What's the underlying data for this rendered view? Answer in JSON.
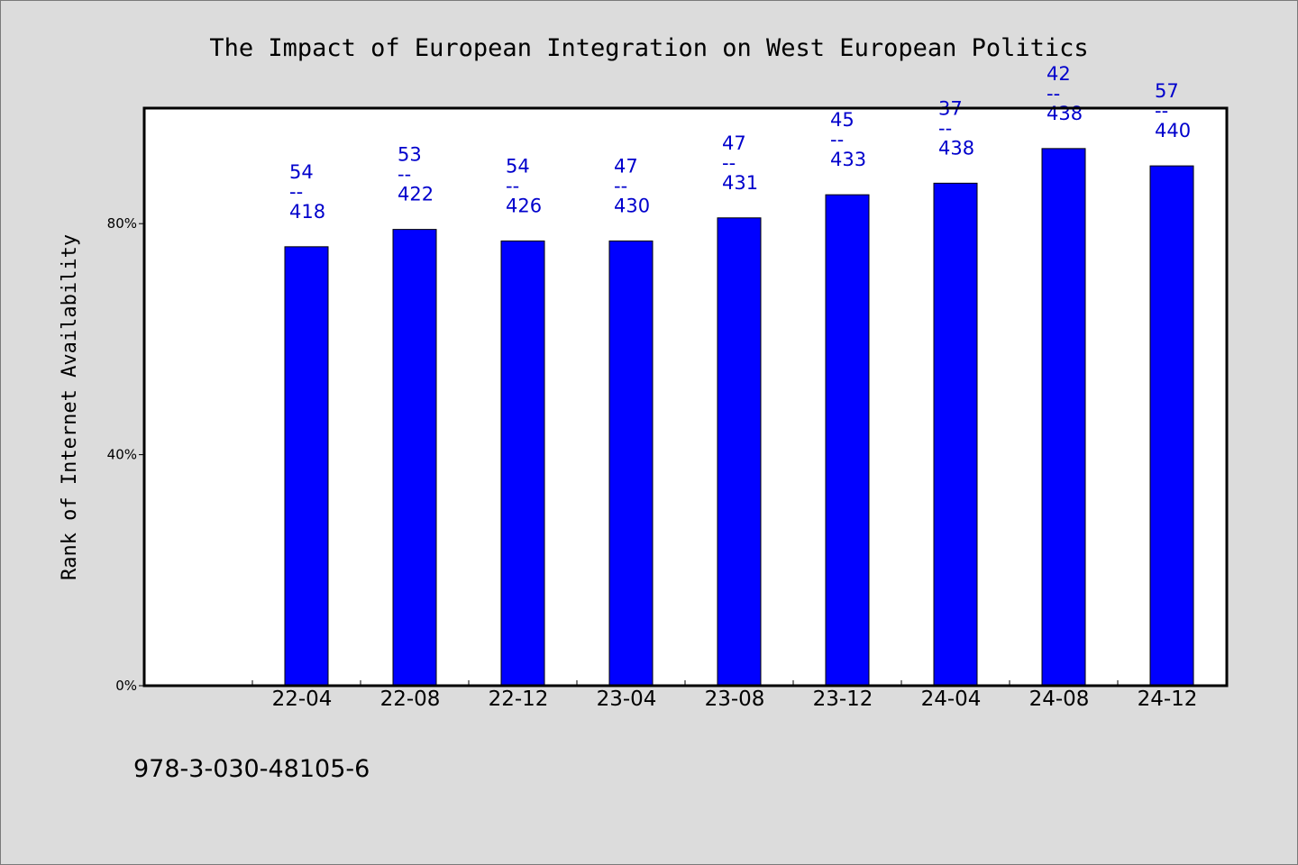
{
  "chart_data": {
    "type": "bar",
    "title": "The Impact of European Integration on West European Politics",
    "xlabel": "",
    "ylabel": "Rank of Internet Availability",
    "categories": [
      "22-04",
      "22-08",
      "22-12",
      "23-04",
      "23-08",
      "23-12",
      "24-04",
      "24-08",
      "24-12"
    ],
    "values": [
      76,
      79,
      77,
      77,
      81,
      85,
      87,
      93,
      90
    ],
    "data_labels": [
      [
        "54",
        "--",
        "418"
      ],
      [
        "53",
        "--",
        "422"
      ],
      [
        "54",
        "--",
        "426"
      ],
      [
        "47",
        "--",
        "430"
      ],
      [
        "47",
        "--",
        "431"
      ],
      [
        "45",
        "--",
        "433"
      ],
      [
        "37",
        "--",
        "438"
      ],
      [
        "42",
        "--",
        "438"
      ],
      [
        "57",
        "--",
        "440"
      ]
    ],
    "ylim": [
      0,
      100
    ],
    "yticks": [
      0,
      40,
      80
    ],
    "ytick_labels": [
      "0%",
      "40%",
      "80%"
    ],
    "bar_color": "#0000ff",
    "label_color": "#0000cc",
    "grid": false,
    "legend": "none"
  },
  "footer": {
    "isbn": "978-3-030-48105-6"
  }
}
